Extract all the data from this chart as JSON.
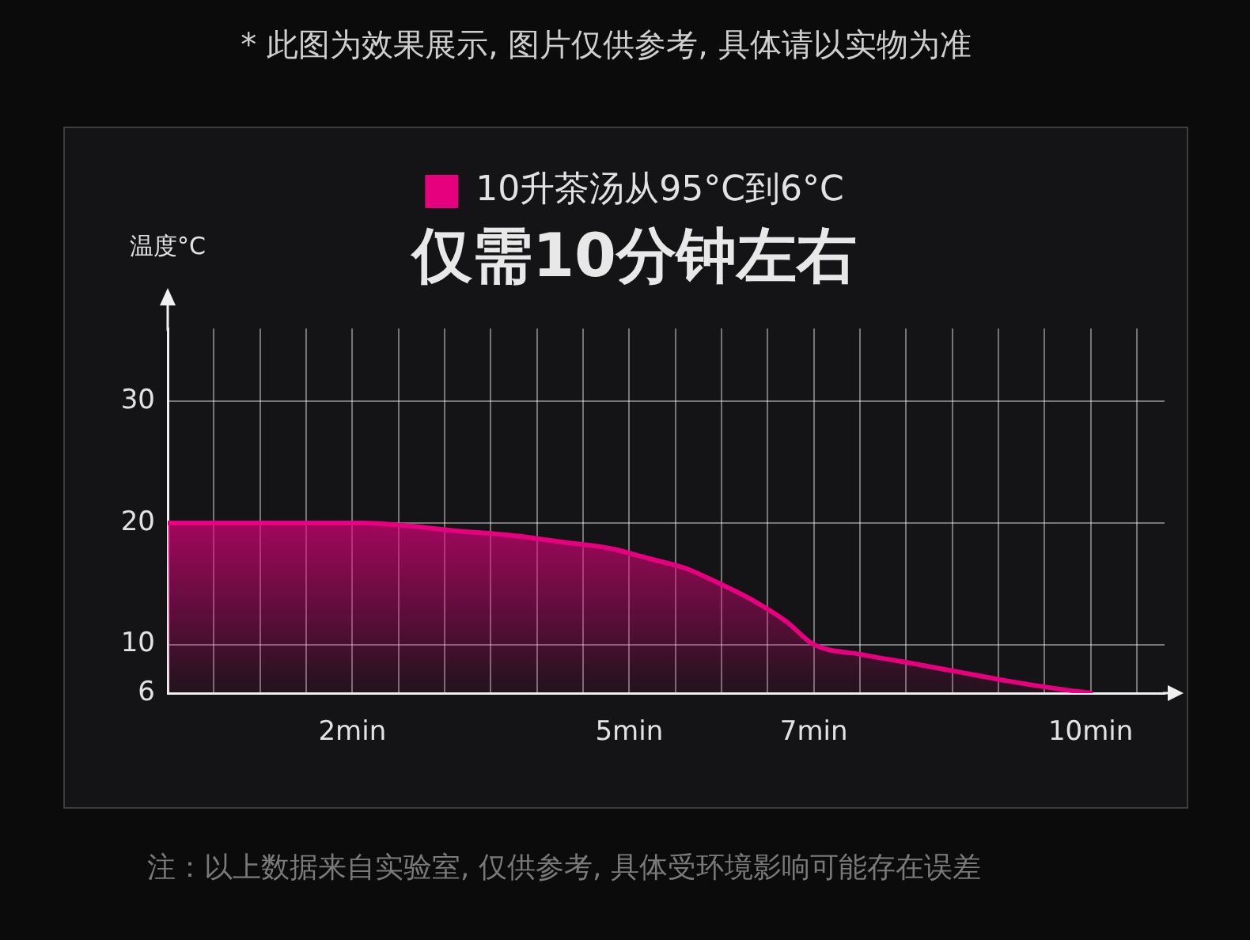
{
  "chart_data": {
    "type": "area",
    "title": "仅需10分钟左右",
    "ylabel": "温度°C",
    "annotations": [
      "* 此图为效果展示, 图片仅供参考, 具体请以实物为准",
      "注：以上数据来自实验室, 仅供参考, 具体受环境影响可能存在误差"
    ],
    "x": [
      0,
      1,
      2.1,
      3.2,
      3.7,
      4.3,
      4.8,
      5.2,
      5.6,
      5.9,
      6.3,
      6.7,
      7,
      7.5,
      8.1,
      8.6,
      9.1,
      9.6,
      10
    ],
    "series": [
      {
        "name": "10升茶汤从95°C到6°C",
        "color": "#e6007e",
        "values": [
          20,
          20,
          20,
          19.3,
          19,
          18.4,
          17.9,
          17.1,
          16.3,
          15.3,
          13.8,
          11.9,
          10,
          9.2,
          8.4,
          7.7,
          7,
          6.4,
          6
        ]
      }
    ],
    "xlim": [
      0,
      10.8
    ],
    "xticks": [
      {
        "value": 0.5,
        "label": null
      },
      {
        "value": 1,
        "label": null
      },
      {
        "value": 1.5,
        "label": null
      },
      {
        "value": 2,
        "label": "2min"
      },
      {
        "value": 2.5,
        "label": null
      },
      {
        "value": 3,
        "label": null
      },
      {
        "value": 3.5,
        "label": null
      },
      {
        "value": 4,
        "label": null
      },
      {
        "value": 4.5,
        "label": null
      },
      {
        "value": 5,
        "label": "5min"
      },
      {
        "value": 5.5,
        "label": null
      },
      {
        "value": 6,
        "label": null
      },
      {
        "value": 6.5,
        "label": null
      },
      {
        "value": 7,
        "label": "7min"
      },
      {
        "value": 7.5,
        "label": null
      },
      {
        "value": 8,
        "label": null
      },
      {
        "value": 8.5,
        "label": null
      },
      {
        "value": 9,
        "label": null
      },
      {
        "value": 9.5,
        "label": null
      },
      {
        "value": 10,
        "label": "10min"
      },
      {
        "value": 10.5,
        "label": null
      }
    ],
    "ylim": [
      6,
      36
    ],
    "yticks": [
      6,
      10,
      20,
      30
    ],
    "grid": true,
    "legend": "top"
  }
}
